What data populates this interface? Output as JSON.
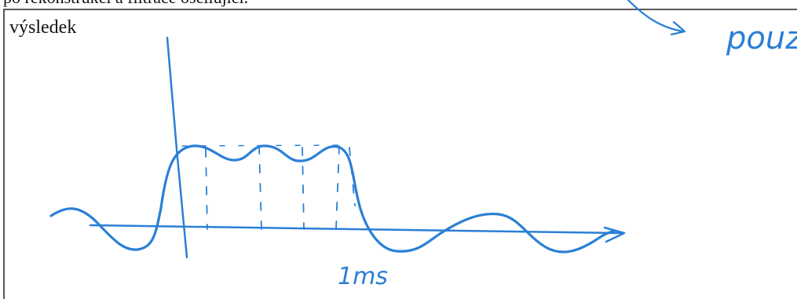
{
  "top_line": "po rekonstrukci a filtrace oscilující.",
  "box": {
    "label": "výsledek",
    "annotations": {
      "time": "1ms",
      "note": "pouz"
    }
  }
}
